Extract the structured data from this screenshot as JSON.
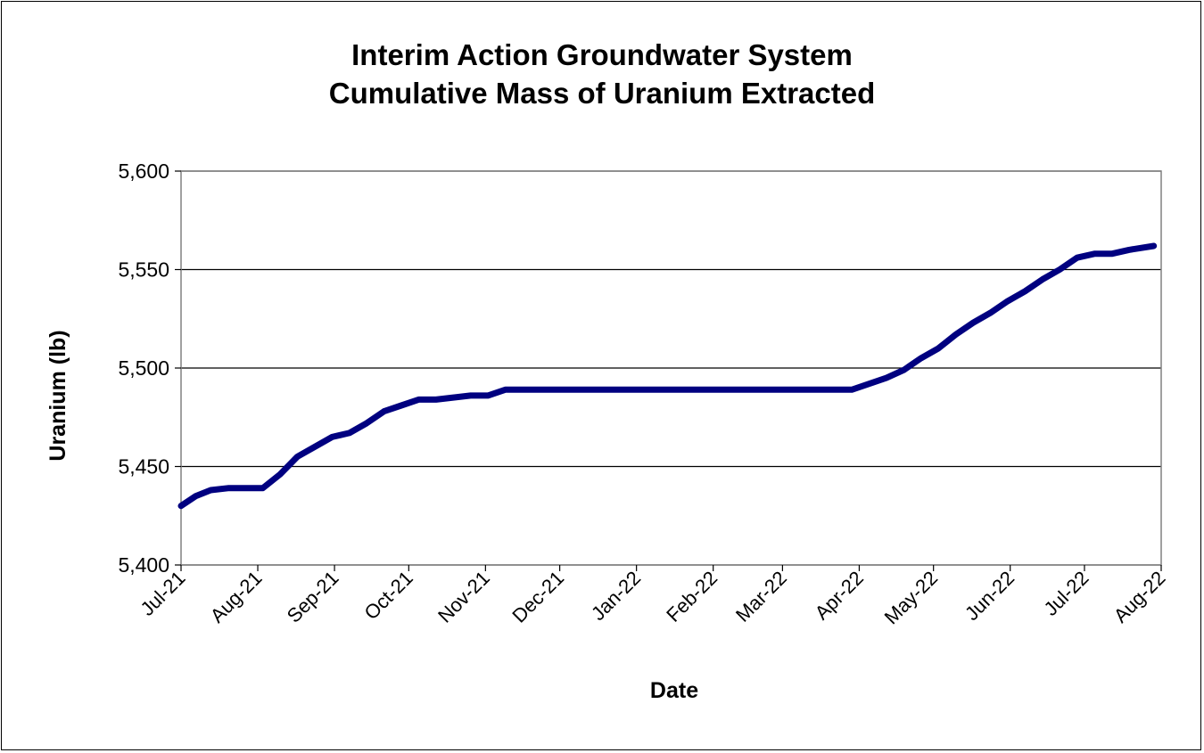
{
  "chart_data": {
    "type": "line",
    "title": "Interim  Action Groundwater System",
    "subtitle": "Cumulative Mass of Uranium Extracted",
    "xlabel": "Date",
    "ylabel": "Uranium (lb)",
    "ylim": [
      5400,
      5600
    ],
    "yticks": [
      5400,
      5450,
      5500,
      5550,
      5600
    ],
    "ytick_labels": [
      "5,400",
      "5,450",
      "5,500",
      "5,550",
      "5,600"
    ],
    "x_range": [
      "2021-07-01",
      "2022-08-01"
    ],
    "xtick_dates": [
      "2021-07-01",
      "2021-08-01",
      "2021-09-01",
      "2021-10-01",
      "2021-11-01",
      "2021-12-01",
      "2022-01-01",
      "2022-02-01",
      "2022-03-01",
      "2022-04-01",
      "2022-05-01",
      "2022-06-01",
      "2022-07-01",
      "2022-08-01"
    ],
    "xtick_labels": [
      "Jul-21",
      "Aug-21",
      "Sep-21",
      "Oct-21",
      "Nov-21",
      "Dec-21",
      "Jan-22",
      "Feb-22",
      "Mar-22",
      "Apr-22",
      "May-22",
      "Jun-22",
      "Jul-22",
      "Aug-22"
    ],
    "grid": true,
    "line_color": "#000080",
    "series": [
      {
        "x": [
          "2021-07-01",
          "2021-07-07",
          "2021-07-13",
          "2021-07-20",
          "2021-07-27",
          "2021-08-03",
          "2021-08-10",
          "2021-08-17",
          "2021-08-24",
          "2021-08-31",
          "2021-09-07",
          "2021-09-14",
          "2021-09-21",
          "2021-09-28",
          "2021-10-05",
          "2021-10-12",
          "2021-10-19",
          "2021-10-26",
          "2021-11-02",
          "2021-11-09",
          "2021-11-16",
          "2021-11-23",
          "2021-11-30",
          "2021-12-31",
          "2022-01-31",
          "2022-02-28",
          "2022-03-22",
          "2022-03-29",
          "2022-04-05",
          "2022-04-12",
          "2022-04-19",
          "2022-04-26",
          "2022-05-03",
          "2022-05-10",
          "2022-05-17",
          "2022-05-24",
          "2022-05-31",
          "2022-06-07",
          "2022-06-14",
          "2022-06-21",
          "2022-06-28",
          "2022-07-05",
          "2022-07-12",
          "2022-07-19",
          "2022-07-29"
        ],
        "values": [
          5430,
          5435,
          5438,
          5439,
          5439,
          5439,
          5446,
          5455,
          5460,
          5465,
          5467,
          5472,
          5478,
          5481,
          5484,
          5484,
          5485,
          5486,
          5486,
          5489,
          5489,
          5489,
          5489,
          5489,
          5489,
          5489,
          5489,
          5489,
          5492,
          5495,
          5499,
          5505,
          5510,
          5517,
          5523,
          5528,
          5534,
          5539,
          5545,
          5550,
          5556,
          5558,
          5558,
          5560,
          5562
        ]
      }
    ]
  }
}
